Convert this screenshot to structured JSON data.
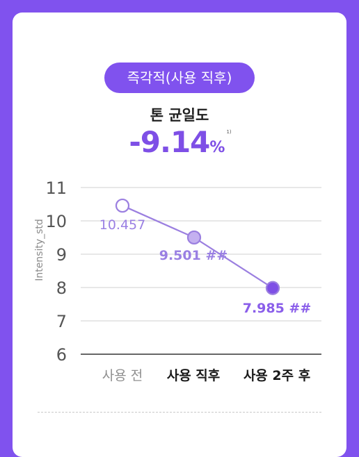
{
  "badge": "즉각적(사용 직후)",
  "metric": {
    "title": "톤 균일도",
    "value": "-9.14",
    "unit": "%",
    "footnote": "1)"
  },
  "colors": {
    "background": "#8052EE",
    "accent": "#7E4FE6",
    "line": "#9B7FE0",
    "point_mid": "#C4B0F0",
    "point_end": "#7E4FE6"
  },
  "chart_data": {
    "type": "line",
    "ylabel": "Intensity_std",
    "xlabel": "",
    "ylim": [
      6,
      11
    ],
    "yticks": [
      "6",
      "7",
      "8",
      "9",
      "10",
      "11"
    ],
    "categories": [
      "사용 전",
      "사용 직후",
      "사용 2주 후"
    ],
    "values": [
      10.457,
      9.501,
      7.985
    ],
    "data_labels": [
      "10.457",
      "9.501 ##",
      "7.985 ##"
    ],
    "grid": true
  }
}
